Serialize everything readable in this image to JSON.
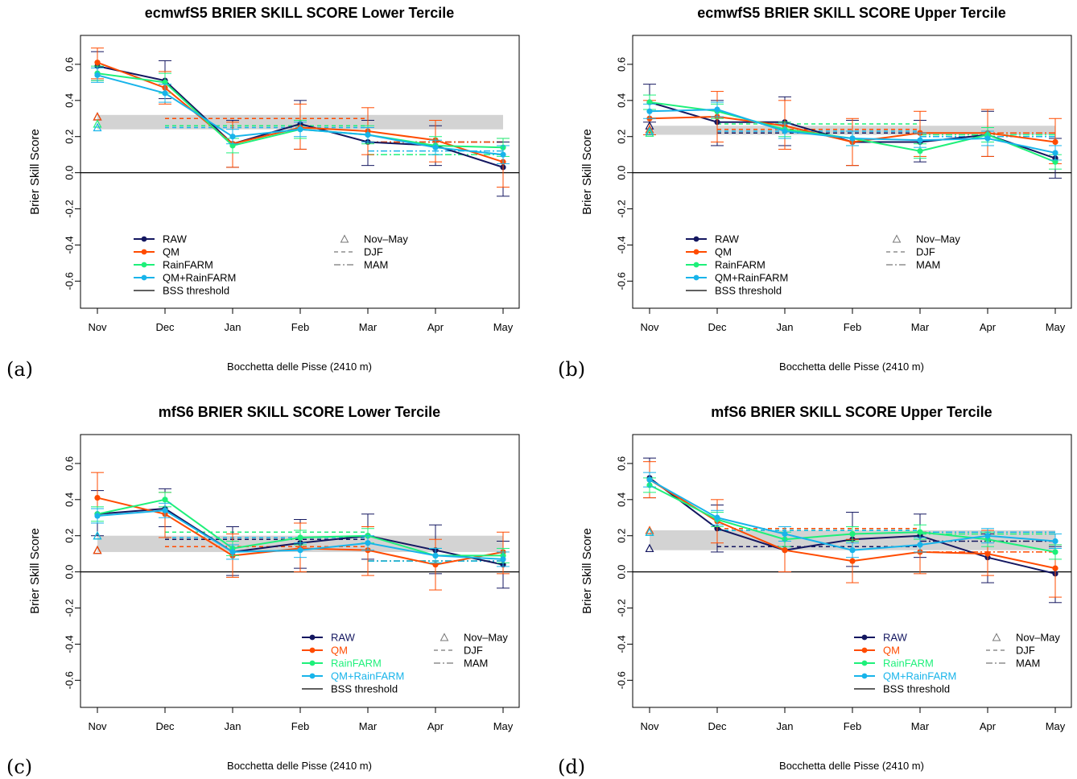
{
  "legend": {
    "entries": [
      {
        "key": "raw",
        "label": "RAW",
        "color": "#141760"
      },
      {
        "key": "qm",
        "label": "QM",
        "color": "#ff4b00"
      },
      {
        "key": "rainfarm",
        "label": "RainFARM",
        "color": "#1ef07a"
      },
      {
        "key": "qmrainfarm",
        "label": "QM+RainFARM",
        "color": "#18b4ea"
      },
      {
        "key": "threshold",
        "label": "BSS threshold",
        "color": "#000000"
      }
    ],
    "season_entries": [
      {
        "key": "novmay",
        "label": "Nov–May",
        "symbol": "triangle"
      },
      {
        "key": "djf",
        "label": "DJF",
        "symbol": "dashed"
      },
      {
        "key": "mam",
        "label": "MAM",
        "symbol": "dotdash"
      }
    ]
  },
  "chart_data": [
    {
      "type": "line",
      "panel_label": "(a)",
      "title": "ecmwfS5 BRIER SKILL SCORE Lower Tercile",
      "xlabel": "Bocchetta delle Pisse (2410 m)",
      "ylabel": "Brier Skill Score",
      "categories": [
        "Nov",
        "Dec",
        "Jan",
        "Feb",
        "Mar",
        "Apr",
        "May"
      ],
      "ylim": [
        -0.75,
        0.76
      ],
      "yticks": [
        "-0.6",
        "-0.4",
        "-0.2",
        "0.0",
        "0.2",
        "0.4",
        "0.6"
      ],
      "legend_position": "bottom-left",
      "threshold_band": [
        0.24,
        0.32
      ],
      "series": [
        {
          "name": "RAW",
          "values": [
            0.59,
            0.51,
            0.16,
            0.27,
            0.17,
            0.15,
            0.03
          ],
          "err_low": [
            0.51,
            0.41,
            0.03,
            0.13,
            0.04,
            0.04,
            -0.13
          ],
          "err_high": [
            0.67,
            0.62,
            0.29,
            0.4,
            0.29,
            0.26,
            0.17
          ]
        },
        {
          "name": "QM",
          "values": [
            0.61,
            0.47,
            0.16,
            0.25,
            0.23,
            0.18,
            0.06
          ],
          "err_low": [
            0.52,
            0.38,
            0.03,
            0.13,
            0.1,
            0.06,
            -0.08
          ],
          "err_high": [
            0.69,
            0.56,
            0.28,
            0.38,
            0.36,
            0.29,
            0.19
          ]
        },
        {
          "name": "RainFARM",
          "values": [
            0.55,
            0.5,
            0.15,
            0.24,
            0.21,
            0.15,
            0.14
          ],
          "err_low": [
            0.51,
            0.44,
            0.11,
            0.19,
            0.16,
            0.1,
            0.09
          ],
          "err_high": [
            0.59,
            0.55,
            0.19,
            0.29,
            0.26,
            0.2,
            0.19
          ]
        },
        {
          "name": "QM+RainFARM",
          "values": [
            0.54,
            0.44,
            0.2,
            0.24,
            0.21,
            0.14,
            0.1
          ],
          "err_low": [
            0.5,
            0.39,
            0.16,
            0.2,
            0.17,
            0.1,
            0.05
          ],
          "err_high": [
            0.58,
            0.49,
            0.24,
            0.28,
            0.25,
            0.18,
            0.15
          ]
        }
      ],
      "novmay": [
        0.31,
        0.31,
        0.27,
        0.25
      ],
      "djf": [
        0.26,
        0.3,
        0.26,
        0.25
      ],
      "mam": [
        0.17,
        0.17,
        0.1,
        0.12
      ]
    },
    {
      "type": "line",
      "panel_label": "(b)",
      "title": "ecmwfS5 BRIER SKILL SCORE Upper Tercile",
      "xlabel": "Bocchetta delle Pisse (2410 m)",
      "ylabel": "Brier Skill Score",
      "categories": [
        "Nov",
        "Dec",
        "Jan",
        "Feb",
        "Mar",
        "Apr",
        "May"
      ],
      "ylim": [
        -0.75,
        0.76
      ],
      "yticks": [
        "-0.6",
        "-0.4",
        "-0.2",
        "0.0",
        "0.2",
        "0.4",
        "0.6"
      ],
      "legend_position": "bottom-left",
      "threshold_band": [
        0.21,
        0.26
      ],
      "series": [
        {
          "name": "RAW",
          "values": [
            0.39,
            0.28,
            0.28,
            0.17,
            0.17,
            0.21,
            0.08
          ],
          "err_low": [
            0.28,
            0.15,
            0.15,
            0.04,
            0.06,
            0.09,
            -0.03
          ],
          "err_high": [
            0.49,
            0.4,
            0.42,
            0.29,
            0.29,
            0.34,
            0.19
          ]
        },
        {
          "name": "QM",
          "values": [
            0.3,
            0.31,
            0.26,
            0.17,
            0.22,
            0.22,
            0.17
          ],
          "err_low": [
            0.21,
            0.17,
            0.13,
            0.04,
            0.09,
            0.09,
            0.05
          ],
          "err_high": [
            0.4,
            0.45,
            0.4,
            0.3,
            0.34,
            0.35,
            0.3
          ]
        },
        {
          "name": "RainFARM",
          "values": [
            0.39,
            0.34,
            0.24,
            0.19,
            0.12,
            0.21,
            0.06
          ],
          "err_low": [
            0.35,
            0.3,
            0.2,
            0.15,
            0.08,
            0.17,
            0.02
          ],
          "err_high": [
            0.43,
            0.38,
            0.28,
            0.23,
            0.16,
            0.25,
            0.1
          ]
        },
        {
          "name": "QM+RainFARM",
          "values": [
            0.34,
            0.35,
            0.23,
            0.19,
            0.18,
            0.19,
            0.11
          ],
          "err_low": [
            0.3,
            0.31,
            0.19,
            0.15,
            0.14,
            0.15,
            0.07
          ],
          "err_high": [
            0.38,
            0.39,
            0.27,
            0.23,
            0.22,
            0.23,
            0.15
          ]
        }
      ],
      "novmay": [
        0.26,
        0.24,
        0.22,
        0.23
      ],
      "djf": [
        0.22,
        0.24,
        0.27,
        0.23
      ],
      "mam": [
        0.22,
        0.22,
        0.21,
        0.2
      ]
    },
    {
      "type": "line",
      "panel_label": "(c)",
      "title": "mfS6 BRIER SKILL SCORE Lower Tercile",
      "xlabel": "Bocchetta delle Pisse (2410 m)",
      "ylabel": "Brier Skill Score",
      "categories": [
        "Nov",
        "Dec",
        "Jan",
        "Feb",
        "Mar",
        "Apr",
        "May"
      ],
      "ylim": [
        -0.75,
        0.76
      ],
      "yticks": [
        "-0.6",
        "-0.4",
        "-0.2",
        "0.0",
        "0.2",
        "0.4",
        "0.6"
      ],
      "legend_position": "bottom-right",
      "threshold_band": [
        0.11,
        0.2
      ],
      "series": [
        {
          "name": "RAW",
          "values": [
            0.32,
            0.35,
            0.11,
            0.16,
            0.2,
            0.12,
            0.04
          ],
          "err_low": [
            0.2,
            0.25,
            -0.02,
            0.02,
            0.07,
            -0.01,
            -0.09
          ],
          "err_high": [
            0.45,
            0.46,
            0.25,
            0.29,
            0.32,
            0.26,
            0.17
          ]
        },
        {
          "name": "QM",
          "values": [
            0.41,
            0.32,
            0.09,
            0.13,
            0.12,
            0.04,
            0.11
          ],
          "err_low": [
            0.27,
            0.19,
            -0.03,
            0.0,
            -0.02,
            -0.1,
            -0.01
          ],
          "err_high": [
            0.55,
            0.44,
            0.21,
            0.27,
            0.25,
            0.18,
            0.22
          ]
        },
        {
          "name": "RainFARM",
          "values": [
            0.32,
            0.4,
            0.13,
            0.19,
            0.2,
            0.09,
            0.09
          ],
          "err_low": [
            0.28,
            0.36,
            0.09,
            0.15,
            0.16,
            0.05,
            0.05
          ],
          "err_high": [
            0.36,
            0.44,
            0.17,
            0.23,
            0.24,
            0.13,
            0.13
          ]
        },
        {
          "name": "QM+RainFARM",
          "values": [
            0.31,
            0.34,
            0.11,
            0.12,
            0.16,
            0.09,
            0.07
          ],
          "err_low": [
            0.27,
            0.3,
            0.07,
            0.08,
            0.12,
            0.05,
            0.03
          ],
          "err_high": [
            0.35,
            0.38,
            0.15,
            0.16,
            0.2,
            0.13,
            0.11
          ]
        }
      ],
      "novmay": [
        0.12,
        0.12,
        0.2,
        0.2
      ],
      "djf": [
        0.18,
        0.14,
        0.22,
        0.19
      ],
      "mam": [
        0.06,
        0.06,
        0.06,
        0.06
      ]
    },
    {
      "type": "line",
      "panel_label": "(d)",
      "title": "mfS6 BRIER SKILL SCORE Upper Tercile",
      "xlabel": "Bocchetta delle Pisse (2410 m)",
      "ylabel": "Brier Skill Score",
      "categories": [
        "Nov",
        "Dec",
        "Jan",
        "Feb",
        "Mar",
        "Apr",
        "May"
      ],
      "ylim": [
        -0.75,
        0.76
      ],
      "yticks": [
        "-0.6",
        "-0.4",
        "-0.2",
        "0.0",
        "0.2",
        "0.4",
        "0.6"
      ],
      "legend_position": "bottom-right",
      "threshold_band": [
        0.12,
        0.23
      ],
      "series": [
        {
          "name": "RAW",
          "values": [
            0.52,
            0.24,
            0.12,
            0.18,
            0.2,
            0.08,
            -0.01
          ],
          "err_low": [
            0.41,
            0.11,
            0.0,
            0.03,
            0.08,
            -0.06,
            -0.17
          ],
          "err_high": [
            0.63,
            0.37,
            0.25,
            0.33,
            0.32,
            0.21,
            0.14
          ]
        },
        {
          "name": "QM",
          "values": [
            0.51,
            0.28,
            0.12,
            0.06,
            0.11,
            0.1,
            0.02
          ],
          "err_low": [
            0.41,
            0.16,
            0.0,
            -0.06,
            -0.01,
            -0.02,
            -0.14
          ],
          "err_high": [
            0.61,
            0.4,
            0.25,
            0.18,
            0.22,
            0.23,
            0.15
          ]
        },
        {
          "name": "RainFARM",
          "values": [
            0.48,
            0.29,
            0.18,
            0.21,
            0.22,
            0.18,
            0.11
          ],
          "err_low": [
            0.44,
            0.25,
            0.14,
            0.17,
            0.18,
            0.14,
            0.07
          ],
          "err_high": [
            0.52,
            0.33,
            0.22,
            0.25,
            0.26,
            0.22,
            0.15
          ]
        },
        {
          "name": "QM+RainFARM",
          "values": [
            0.51,
            0.3,
            0.21,
            0.12,
            0.15,
            0.2,
            0.17
          ],
          "err_low": [
            0.47,
            0.26,
            0.17,
            0.08,
            0.11,
            0.16,
            0.13
          ],
          "err_high": [
            0.55,
            0.34,
            0.25,
            0.16,
            0.19,
            0.24,
            0.21
          ]
        }
      ],
      "novmay": [
        0.13,
        0.23,
        0.22,
        0.22
      ],
      "djf": [
        0.14,
        0.24,
        0.23,
        0.23
      ],
      "mam": [
        0.17,
        0.11,
        0.21,
        0.22
      ]
    }
  ]
}
